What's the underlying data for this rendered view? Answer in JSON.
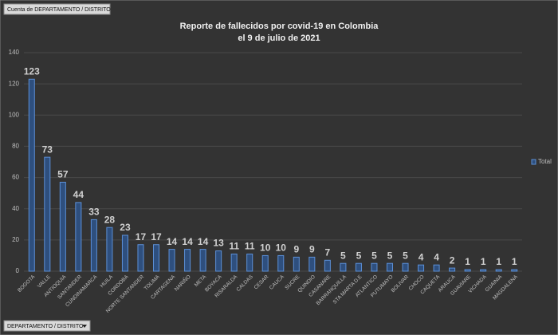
{
  "chart_data": {
    "type": "bar",
    "title": "Reporte de fallecidos por covid-19 en Colombia",
    "subtitle": "el 9 de julio de 2021",
    "value_field": "Cuenta de DEPARTAMENTO / DISTRITO",
    "axis_field": "DEPARTAMENTO / DISTRITO",
    "categories": [
      "BOGOTA",
      "VALLE",
      "ANTIOQUIA",
      "SANTANDER",
      "CUNDINAMARCA",
      "HUILA",
      "CORDOBA",
      "NORTE SANTANDER",
      "TOLIMA",
      "CARTAGENA",
      "NARIÑO",
      "META",
      "BOYACA",
      "RISARALDA",
      "CALDAS",
      "CESAR",
      "CAUCA",
      "SUCRE",
      "QUINDIO",
      "CASANARE",
      "BARRANQUILLA",
      "STA MARTA D.E",
      "ATLANTICO",
      "PUTUMAYO",
      "BOLIVAR",
      "CHOCO",
      "CAQUETA",
      "ARAUCA",
      "GUAVIARE",
      "VICHADA",
      "GUAINIA",
      "MAGDALENA"
    ],
    "series": [
      {
        "name": "Total",
        "color": "#2e4f7e",
        "edge_color": "#5b8fd6",
        "values": [
          123,
          73,
          57,
          44,
          33,
          28,
          23,
          17,
          17,
          14,
          14,
          14,
          13,
          11,
          11,
          10,
          10,
          9,
          9,
          7,
          5,
          5,
          5,
          5,
          5,
          4,
          4,
          2,
          1,
          1,
          1,
          1
        ]
      }
    ],
    "ylim": [
      0,
      140
    ],
    "yticks": [
      0,
      20,
      40,
      60,
      80,
      100,
      120,
      140
    ],
    "grid": true,
    "legend": "right"
  }
}
